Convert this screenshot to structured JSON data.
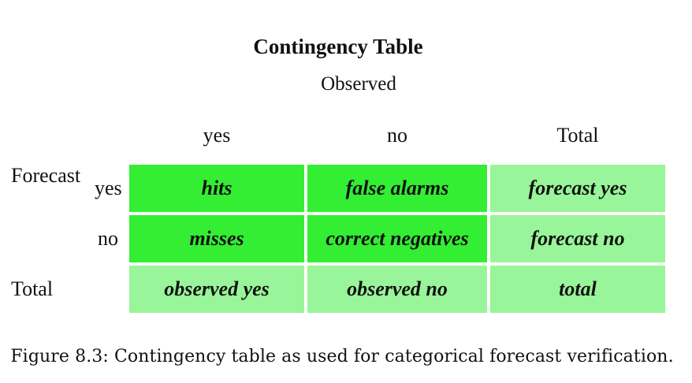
{
  "title": "Contingency Table",
  "observed_label": "Observed",
  "columns": {
    "yes": "yes",
    "no": "no",
    "total": "Total"
  },
  "rows": {
    "forecast_label": "Forecast",
    "yes": "yes",
    "no": "no",
    "total": "Total"
  },
  "cells": {
    "hits": "hits",
    "false_alarms": "false alarms",
    "forecast_yes": "forecast yes",
    "misses": "misses",
    "correct_negatives": "correct negatives",
    "forecast_no": "forecast no",
    "observed_yes": "observed yes",
    "observed_no": "observed no",
    "total": "total"
  },
  "colors": {
    "bright_green": "#33ee33",
    "light_green": "#99f599"
  },
  "caption": "Figure 8.3: Contingency table as used for categorical forecast verification."
}
